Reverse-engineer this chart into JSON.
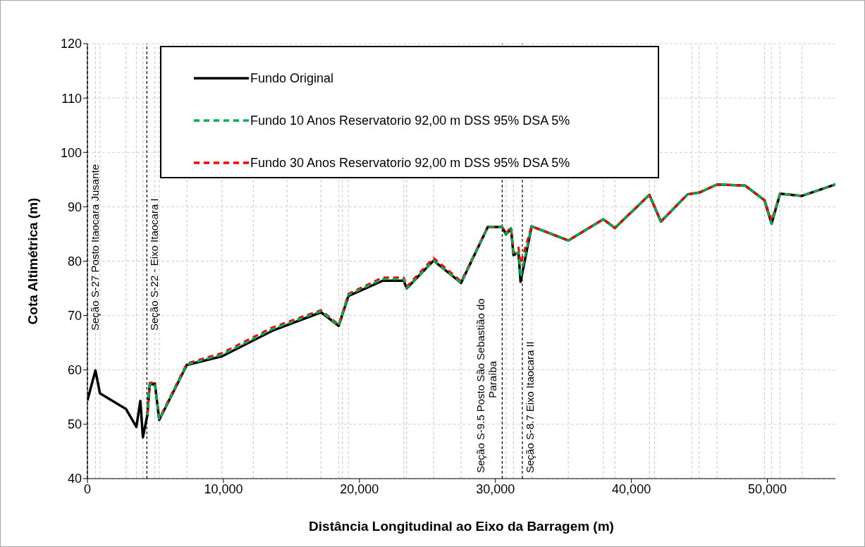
{
  "chart_data": {
    "type": "line",
    "xlabel": "Distância Longitudinal  ao Eixo da Barragem (m)",
    "ylabel": "Cota  Altimétrica (m)",
    "xlim": [
      0,
      55000
    ],
    "xticks": [
      0,
      {
        "value": 10000,
        "label": "10,000"
      },
      {
        "value": 20000,
        "label": "20,000"
      },
      {
        "value": 30000,
        "label": "30,000"
      },
      {
        "value": 40000,
        "label": "40,000"
      },
      {
        "value": 50000,
        "label": "50,000"
      }
    ],
    "ylim": [
      40,
      120
    ],
    "yticks": [
      40,
      50,
      60,
      70,
      80,
      90,
      100,
      110,
      120
    ],
    "grid": "y",
    "legend": "top",
    "marker": "none",
    "series": [
      {
        "name": "Fundo Original",
        "color": "#000000",
        "line_style": "solid",
        "x": [
          0,
          590,
          920,
          2840,
          3600,
          3890,
          4080,
          4410,
          4580,
          4960,
          5280,
          7310,
          9890,
          13600,
          17180,
          18480,
          19190,
          21710,
          23260,
          23480,
          25450,
          27480,
          29440,
          30500,
          30780,
          31150,
          31330,
          31700,
          31850,
          32660,
          35360,
          37940,
          38780,
          41320,
          42170,
          44140,
          44980,
          46300,
          48370,
          49790,
          50310,
          50930,
          52540,
          55000
        ],
        "values": [
          54.4,
          59.9,
          55.7,
          52.8,
          49.5,
          54.3,
          47.6,
          51.7,
          57.3,
          57.5,
          50.8,
          60.9,
          62.5,
          67.2,
          70.6,
          68.1,
          73.6,
          76.4,
          76.4,
          75.0,
          80.1,
          76.0,
          86.3,
          86.3,
          84.9,
          86.0,
          81.1,
          81.6,
          76.2,
          86.4,
          83.8,
          87.7,
          86.1,
          92.2,
          87.3,
          92.3,
          92.6,
          94.1,
          93.9,
          91.2,
          86.9,
          92.4,
          92.0,
          94.1
        ]
      },
      {
        "name": "Fundo 10 Anos Reservatorio 92,00 m DSS 95% DSA 5%",
        "color": "#00b050",
        "line_style": "dashed",
        "x": [
          4410,
          4580,
          4960,
          5280,
          7310,
          9890,
          13600,
          17180,
          18480,
          19190,
          21710,
          23260,
          23480,
          25450,
          27480,
          29440,
          30500,
          30780,
          31150,
          31330,
          31700,
          31850,
          32660,
          35360,
          37940,
          38780,
          41320,
          42170,
          44140,
          44980,
          46300,
          48370,
          49790,
          50310,
          50930,
          52540,
          55000
        ],
        "values": [
          51.7,
          57.3,
          57.5,
          50.8,
          61.0,
          62.8,
          67.5,
          70.8,
          68.1,
          73.8,
          76.7,
          76.7,
          75.0,
          80.1,
          76.0,
          86.3,
          86.3,
          84.9,
          86.0,
          81.1,
          81.6,
          77.0,
          86.4,
          83.8,
          87.7,
          86.1,
          92.2,
          87.3,
          92.3,
          92.6,
          94.1,
          93.9,
          91.2,
          86.9,
          92.4,
          92.0,
          94.1
        ]
      },
      {
        "name": "Fundo 30 Anos Reservatorio 92,00 m DSS 95% DSA 5%",
        "color": "#ff0000",
        "line_style": "dashed",
        "x": [
          4410,
          4580,
          4960,
          5280,
          7310,
          9890,
          13600,
          17180,
          18480,
          19190,
          21710,
          23260,
          23480,
          25450,
          27480,
          29440,
          30500,
          30780,
          31150,
          31330,
          31700,
          31850,
          32660,
          35360,
          37940,
          38780,
          41320,
          42170,
          44140,
          44980,
          46300,
          48370,
          49790,
          50310,
          50930,
          52540,
          55000
        ],
        "values": [
          51.7,
          57.6,
          57.7,
          51.0,
          61.2,
          63.1,
          67.8,
          71.0,
          68.3,
          74.0,
          77.0,
          77.0,
          75.3,
          80.6,
          76.3,
          86.3,
          86.3,
          85.2,
          86.2,
          81.5,
          82.5,
          79.5,
          86.4,
          83.8,
          87.7,
          86.1,
          92.2,
          87.3,
          92.3,
          92.6,
          94.1,
          93.9,
          91.2,
          87.5,
          92.4,
          92.0,
          94.1
        ]
      }
    ],
    "ref_lines": [
      {
        "axis": "x",
        "value": 0,
        "label": "Seção S-27 Posto Itaocara Jusante",
        "color": "#000000",
        "line_style": "dashed"
      },
      {
        "axis": "x",
        "value": 4370,
        "label": "Seção S-22 - Eixo Itaocara I",
        "color": "#000000",
        "line_style": "dashed"
      },
      {
        "axis": "x",
        "value": 30500,
        "label": "Seção S-9.5 Posto São Sebastião do Paraíba",
        "color": "#000000",
        "line_style": "dashed"
      },
      {
        "axis": "x",
        "value": 31980,
        "label": "Seção S-8.7 Eixo Itaocara II",
        "color": "#000000",
        "line_style": "dashed"
      },
      {
        "axis": "x",
        "value": 590,
        "color": "#d0d0d0",
        "line_style": "dashed"
      },
      {
        "axis": "x",
        "value": 920,
        "color": "#d0d0d0",
        "line_style": "dashed"
      },
      {
        "axis": "x",
        "value": 2840,
        "color": "#d0d0d0",
        "line_style": "dashed"
      },
      {
        "axis": "x",
        "value": 3600,
        "color": "#d0d0d0",
        "line_style": "dashed"
      },
      {
        "axis": "x",
        "value": 4080,
        "color": "#d0d0d0",
        "line_style": "dashed"
      },
      {
        "axis": "x",
        "value": 4960,
        "color": "#d0d0d0",
        "line_style": "dashed"
      },
      {
        "axis": "x",
        "value": 5280,
        "color": "#d0d0d0",
        "line_style": "dashed"
      },
      {
        "axis": "x",
        "value": 7310,
        "color": "#d0d0d0",
        "line_style": "dashed"
      },
      {
        "axis": "x",
        "value": 9890,
        "color": "#d0d0d0",
        "line_style": "dashed"
      },
      {
        "axis": "x",
        "value": 12200,
        "color": "#d0d0d0",
        "line_style": "dashed"
      },
      {
        "axis": "x",
        "value": 14680,
        "color": "#d0d0d0",
        "line_style": "dashed"
      },
      {
        "axis": "x",
        "value": 17180,
        "color": "#d0d0d0",
        "line_style": "dashed"
      },
      {
        "axis": "x",
        "value": 18480,
        "color": "#d0d0d0",
        "line_style": "dashed"
      },
      {
        "axis": "x",
        "value": 18750,
        "color": "#d0d0d0",
        "line_style": "dashed"
      },
      {
        "axis": "x",
        "value": 19190,
        "color": "#d0d0d0",
        "line_style": "dashed"
      },
      {
        "axis": "x",
        "value": 23260,
        "color": "#d0d0d0",
        "line_style": "dashed"
      },
      {
        "axis": "x",
        "value": 23480,
        "color": "#d0d0d0",
        "line_style": "dashed"
      },
      {
        "axis": "x",
        "value": 25450,
        "color": "#d0d0d0",
        "line_style": "dashed"
      },
      {
        "axis": "x",
        "value": 27480,
        "color": "#d0d0d0",
        "line_style": "dashed"
      },
      {
        "axis": "x",
        "value": 30780,
        "color": "#d0d0d0",
        "line_style": "dashed"
      },
      {
        "axis": "x",
        "value": 31330,
        "color": "#d0d0d0",
        "line_style": "dashed"
      },
      {
        "axis": "x",
        "value": 32660,
        "color": "#d0d0d0",
        "line_style": "dashed"
      },
      {
        "axis": "x",
        "value": 35360,
        "color": "#d0d0d0",
        "line_style": "dashed"
      },
      {
        "axis": "x",
        "value": 37940,
        "color": "#d0d0d0",
        "line_style": "dashed"
      },
      {
        "axis": "x",
        "value": 38780,
        "color": "#d0d0d0",
        "line_style": "dashed"
      },
      {
        "axis": "x",
        "value": 41320,
        "color": "#d0d0d0",
        "line_style": "dashed"
      },
      {
        "axis": "x",
        "value": 41700,
        "color": "#d0d0d0",
        "line_style": "dashed"
      },
      {
        "axis": "x",
        "value": 44450,
        "color": "#d0d0d0",
        "line_style": "dashed"
      },
      {
        "axis": "x",
        "value": 44980,
        "color": "#d0d0d0",
        "line_style": "dashed"
      },
      {
        "axis": "x",
        "value": 46300,
        "color": "#d0d0d0",
        "line_style": "dashed"
      },
      {
        "axis": "x",
        "value": 49790,
        "color": "#d0d0d0",
        "line_style": "dashed"
      },
      {
        "axis": "x",
        "value": 50310,
        "color": "#d0d0d0",
        "line_style": "dashed"
      },
      {
        "axis": "x",
        "value": 50930,
        "color": "#d0d0d0",
        "line_style": "dashed"
      },
      {
        "axis": "x",
        "value": 52540,
        "color": "#d0d0d0",
        "line_style": "dashed"
      }
    ]
  }
}
